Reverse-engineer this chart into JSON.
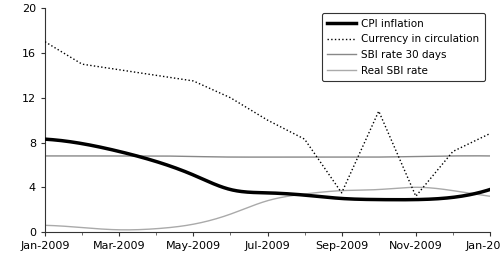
{
  "title": "",
  "xlabel": "",
  "ylabel": "",
  "ylim": [
    0,
    20
  ],
  "yticks": [
    0,
    4,
    8,
    12,
    16,
    20
  ],
  "xtick_labels": [
    "Jan-2009",
    "Mar-2009",
    "May-2009",
    "Jul-2009",
    "Sep-2009",
    "Nov-2009",
    "Jan-2010"
  ],
  "months": [
    0,
    1,
    2,
    3,
    4,
    5,
    6,
    7,
    8,
    9,
    10,
    11,
    12
  ],
  "cpi_inflation": [
    8.3,
    7.9,
    7.2,
    6.3,
    5.1,
    3.8,
    3.5,
    3.3,
    3.0,
    2.9,
    2.9,
    3.1,
    3.8
  ],
  "currency_in_circulation": [
    17.0,
    15.0,
    14.5,
    14.0,
    13.5,
    12.0,
    10.0,
    8.3,
    3.5,
    10.8,
    3.2,
    7.2,
    8.8
  ],
  "sbi_rate_30": [
    6.8,
    6.8,
    6.8,
    6.8,
    6.75,
    6.7,
    6.7,
    6.7,
    6.7,
    6.7,
    6.75,
    6.8,
    6.8
  ],
  "real_sbi_rate": [
    0.6,
    0.4,
    0.2,
    0.3,
    0.7,
    1.6,
    2.8,
    3.4,
    3.7,
    3.8,
    4.0,
    3.7,
    3.2
  ],
  "cpi_color": "#000000",
  "currency_color": "#000000",
  "sbi30_color": "#888888",
  "real_sbi_color": "#aaaaaa",
  "background_color": "#ffffff",
  "legend_labels": [
    "CPI inflation",
    "Currency in circulation",
    "SBI rate 30 days",
    "Real SBI rate"
  ],
  "figsize": [
    5.0,
    2.73
  ],
  "dpi": 100
}
